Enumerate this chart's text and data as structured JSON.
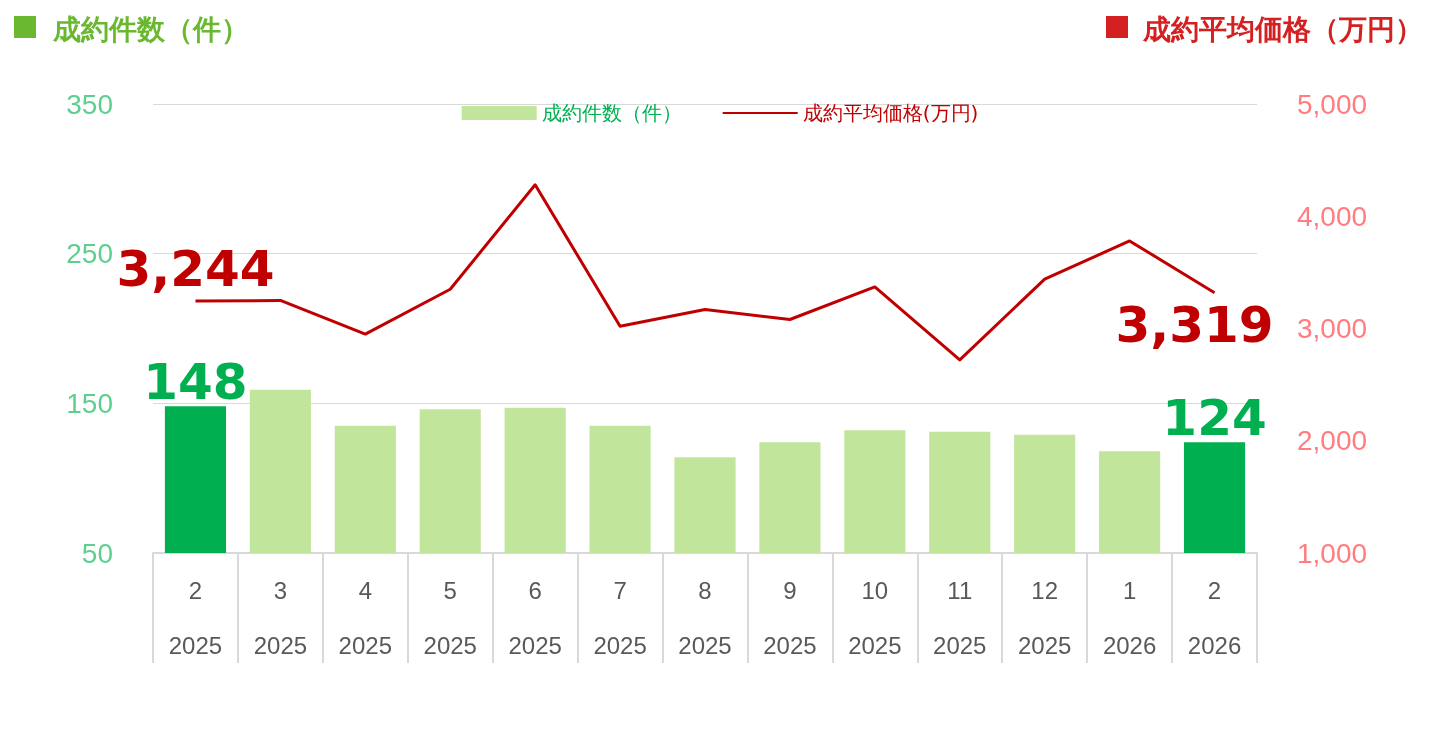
{
  "chart_data": {
    "type": "bar",
    "ylabel": "成約件数（件）",
    "y2label": "成約平均価格（万円）",
    "categories": [
      "2\n2025",
      "3\n2025",
      "4\n2025",
      "5\n2025",
      "6\n2025",
      "7\n2025",
      "8\n2025",
      "9\n2025",
      "10\n2025",
      "11\n2025",
      "12\n2025",
      "1\n2026",
      "2\n2026"
    ],
    "series": [
      {
        "name": "成約件数（件）",
        "color": "#c2e59c",
        "colors": [
          "#00b050",
          "#c2e59c",
          "#c2e59c",
          "#c2e59c",
          "#c2e59c",
          "#c2e59c",
          "#c2e59c",
          "#c2e59c",
          "#c2e59c",
          "#c2e59c",
          "#c2e59c",
          "#c2e59c",
          "#00b050"
        ],
        "values": [
          148,
          159,
          135,
          146,
          147,
          135,
          114,
          124,
          132,
          131,
          129,
          118,
          124
        ],
        "value_labels": [
          "148",
          null,
          null,
          null,
          null,
          null,
          null,
          null,
          null,
          null,
          null,
          null,
          "124"
        ]
      },
      {
        "name": "成約平均価格(万円)",
        "type": "line",
        "axis": "y2",
        "color": "#c00000",
        "values": [
          3244,
          3250,
          2950,
          3350,
          4280,
          3020,
          3170,
          3080,
          3370,
          2720,
          3440,
          3780,
          3319
        ],
        "value_labels": [
          "3,244",
          null,
          null,
          null,
          null,
          null,
          null,
          null,
          null,
          null,
          null,
          null,
          "3,319"
        ]
      }
    ],
    "ylim": [
      50,
      350
    ],
    "yticks": [
      50,
      150,
      250,
      350
    ],
    "y2lim": [
      1000,
      5000
    ],
    "y2ticks": [
      {
        "value": 1000,
        "label": "1,000"
      },
      {
        "value": 2000,
        "label": "2,000"
      },
      {
        "value": 3000,
        "label": "3,000"
      },
      {
        "value": 4000,
        "label": "4,000"
      },
      {
        "value": 5000,
        "label": "5,000"
      }
    ],
    "grid": "y",
    "legend": "top",
    "marker": "none",
    "line_style": "solid"
  }
}
